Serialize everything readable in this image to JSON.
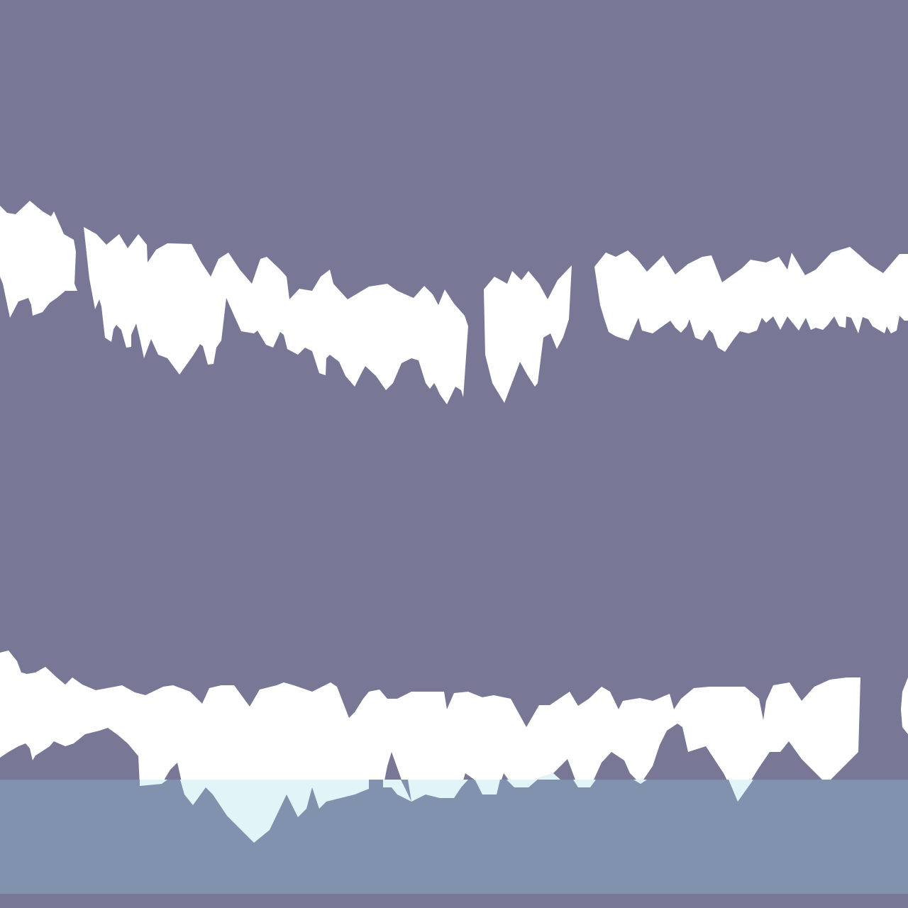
{
  "scene": {
    "sky_color": "#787896",
    "ice_color": "#ffffff",
    "water_color": "#8092ad",
    "submerged_ice_color": "#e1f4f8",
    "bottom_edge_color": "#787896"
  }
}
